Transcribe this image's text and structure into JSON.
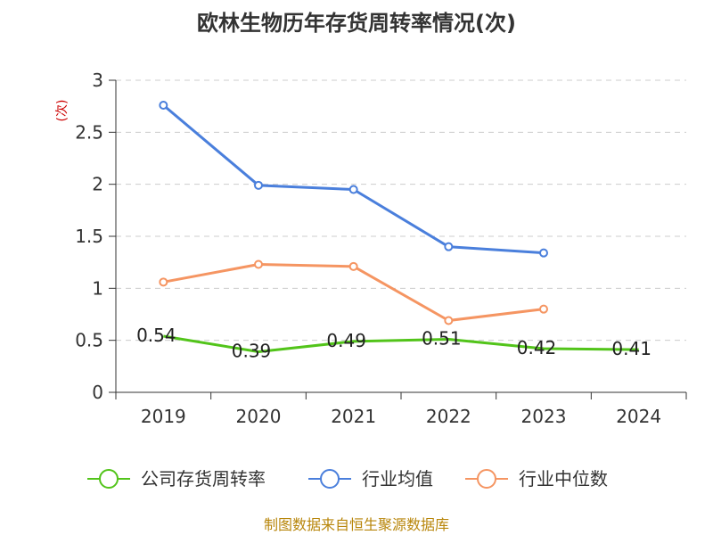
{
  "chart_data": {
    "type": "line",
    "title": "欧林生物历年存货周转率情况(次)",
    "ylabel": "(次)",
    "xlabel": "",
    "categories": [
      "2019",
      "2020",
      "2021",
      "2022",
      "2023",
      "2024"
    ],
    "ylim": [
      0,
      3
    ],
    "yticks": [
      "0",
      "0.5",
      "1",
      "1.5",
      "2",
      "2.5",
      "3"
    ],
    "grid": true,
    "legend_position": "bottom",
    "series": [
      {
        "name": "公司存货周转率",
        "color": "#52c41a",
        "values": [
          0.54,
          0.39,
          0.49,
          0.51,
          0.42,
          0.41
        ],
        "labels": [
          "0.54",
          "0.39",
          "0.49",
          "0.51",
          "0.42",
          "0.41"
        ]
      },
      {
        "name": "行业均值",
        "color": "#4a7fdc",
        "values": [
          2.76,
          1.99,
          1.95,
          1.4,
          1.34,
          null
        ]
      },
      {
        "name": "行业中位数",
        "color": "#f59562",
        "values": [
          1.06,
          1.23,
          1.21,
          0.69,
          0.8,
          null
        ]
      }
    ]
  },
  "footer": "制图数据来自恒生聚源数据库"
}
